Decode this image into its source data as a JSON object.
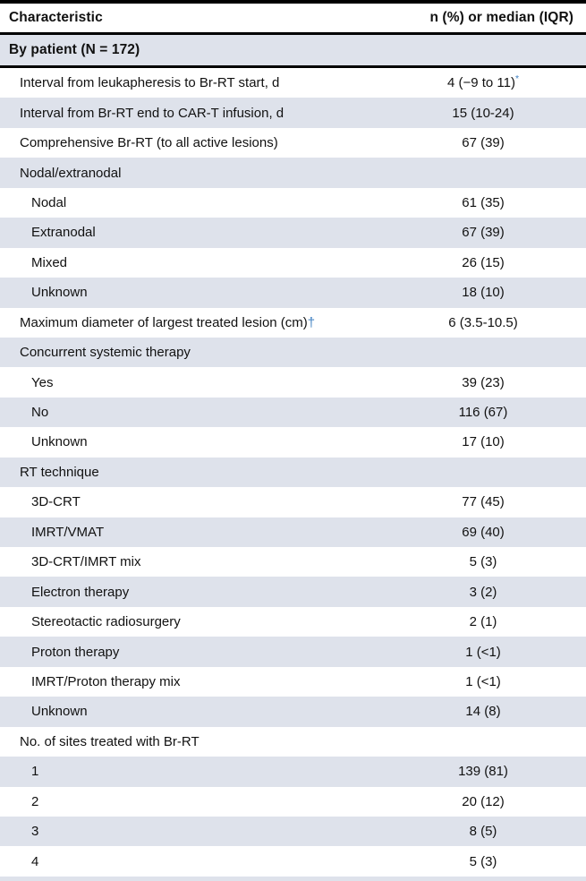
{
  "header": {
    "characteristic": "Characteristic",
    "value": "n (%) or median (IQR)"
  },
  "section": {
    "label": "By patient (N = 172)"
  },
  "colors": {
    "row_alt": "#dee2eb",
    "footnote_blue": "#3d7fc1",
    "rule": "#000000",
    "text": "#111111"
  },
  "rows": [
    {
      "label": "Interval from leukapheresis to Br-RT start, d",
      "value": "4 (−9 to 11)",
      "value_marker": "*",
      "indent": 1
    },
    {
      "label": "Interval from Br-RT end to CAR-T infusion, d",
      "value": "15 (10-24)",
      "indent": 1
    },
    {
      "label": "Comprehensive Br-RT (to all active lesions)",
      "value": "67 (39)",
      "indent": 1
    },
    {
      "label": "Nodal/extranodal",
      "value": "",
      "indent": 1
    },
    {
      "label": "Nodal",
      "value": "61 (35)",
      "indent": 2
    },
    {
      "label": "Extranodal",
      "value": "67 (39)",
      "indent": 2
    },
    {
      "label": "Mixed",
      "value": "26 (15)",
      "indent": 2
    },
    {
      "label": "Unknown",
      "value": "18 (10)",
      "indent": 2
    },
    {
      "label": "Maximum diameter of largest treated lesion (cm)",
      "label_marker": "†",
      "value": "6 (3.5-10.5)",
      "indent": 1
    },
    {
      "label": "Concurrent systemic therapy",
      "value": "",
      "indent": 1
    },
    {
      "label": "Yes",
      "value": "39 (23)",
      "indent": 2
    },
    {
      "label": "No",
      "value": "116 (67)",
      "indent": 2
    },
    {
      "label": "Unknown",
      "value": "17 (10)",
      "indent": 2
    },
    {
      "label": "RT technique",
      "value": "",
      "indent": 1
    },
    {
      "label": "3D-CRT",
      "value": "77 (45)",
      "indent": 2
    },
    {
      "label": "IMRT/VMAT",
      "value": "69 (40)",
      "indent": 2
    },
    {
      "label": "3D-CRT/IMRT mix",
      "value": "5 (3)",
      "indent": 2
    },
    {
      "label": "Electron therapy",
      "value": "3 (2)",
      "indent": 2
    },
    {
      "label": "Stereotactic radiosurgery",
      "value": "2 (1)",
      "indent": 2
    },
    {
      "label": "Proton therapy",
      "value": "1 (<1)",
      "indent": 2
    },
    {
      "label": "IMRT/Proton therapy mix",
      "value": "1 (<1)",
      "indent": 2
    },
    {
      "label": "Unknown",
      "value": "14 (8)",
      "indent": 2
    },
    {
      "label": "No. of sites treated with Br-RT",
      "value": "",
      "indent": 1
    },
    {
      "label": "1",
      "value": "139 (81)",
      "indent": 2
    },
    {
      "label": "2",
      "value": "20 (12)",
      "indent": 2
    },
    {
      "label": "3",
      "value": "8 (5)",
      "indent": 2
    },
    {
      "label": "4",
      "value": "5 (3)",
      "indent": 2
    }
  ]
}
